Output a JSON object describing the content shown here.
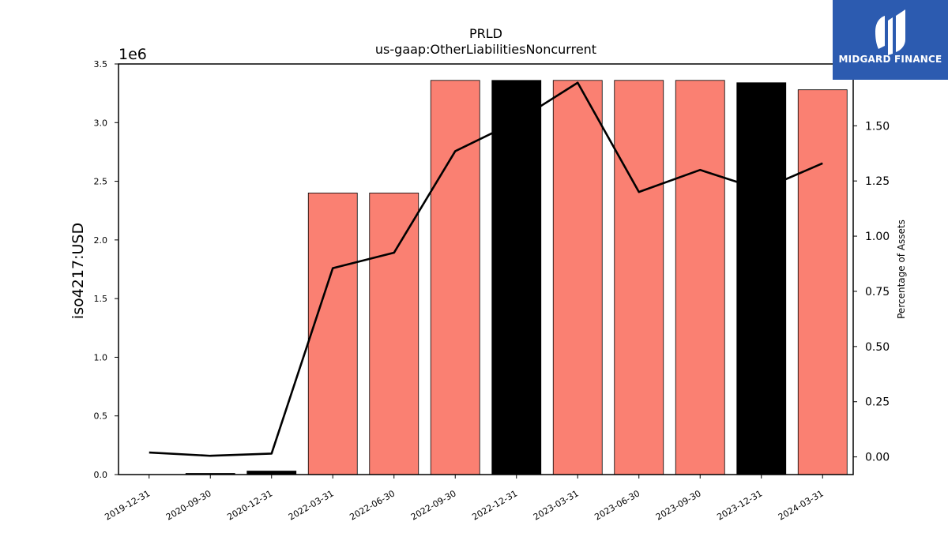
{
  "logo": {
    "text": "MIDGARD FINANCE",
    "background": "#2c5bb0",
    "icon": "midgard-monogram-icon"
  },
  "chart_data": {
    "type": "bar",
    "title": "PRLD",
    "subtitle": "us-gaap:OtherLiabilitiesNoncurrent",
    "ylabel": "iso4217:USD",
    "y_scale_note": "1e6",
    "y2label": "Percentage of Assets",
    "categories": [
      "2019-12-31",
      "2020-09-30",
      "2020-12-31",
      "2022-03-31",
      "2022-06-30",
      "2022-09-30",
      "2022-12-31",
      "2023-03-31",
      "2023-06-30",
      "2023-09-30",
      "2023-12-31",
      "2024-03-31"
    ],
    "bar_values": [
      0,
      10000,
      30000,
      2400000,
      2400000,
      3360000,
      3360000,
      3360000,
      3360000,
      3360000,
      3340000,
      3280000
    ],
    "bar_colors": [
      "#000000",
      "#000000",
      "#000000",
      "#fa8072",
      "#fa8072",
      "#fa8072",
      "#000000",
      "#fa8072",
      "#fa8072",
      "#fa8072",
      "#000000",
      "#fa8072"
    ],
    "line_values": [
      0.02,
      0.005,
      0.015,
      0.855,
      0.925,
      1.385,
      1.52,
      1.695,
      1.2,
      1.3,
      1.21,
      1.33
    ],
    "line_color": "#000000",
    "ylim": [
      0,
      3500000
    ],
    "y_ticks": [
      0,
      500000,
      1000000,
      1500000,
      2000000,
      2500000,
      3000000,
      3500000
    ],
    "y_tick_labels": [
      "0.0",
      "0.5",
      "1.0",
      "1.5",
      "2.0",
      "2.5",
      "3.0",
      "3.5"
    ],
    "y2lim": [
      -0.08,
      1.78
    ],
    "y2_ticks": [
      0,
      0.25,
      0.5,
      0.75,
      1.0,
      1.25,
      1.5
    ],
    "y2_tick_labels": [
      "0.00",
      "0.25",
      "0.50",
      "0.75",
      "1.00",
      "1.25",
      "1.50"
    ],
    "grid": false,
    "legend": "none"
  }
}
